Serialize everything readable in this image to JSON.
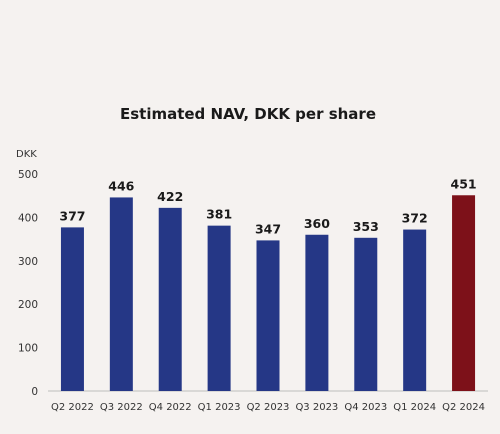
{
  "chart_data": {
    "type": "bar",
    "title": "Estimated NAV, DKK per share",
    "ylabel": "DKK",
    "xlabel": "",
    "ylim": [
      0,
      500
    ],
    "yticks": [
      0,
      100,
      200,
      300,
      400,
      500
    ],
    "categories": [
      "Q2 2022",
      "Q3 2022",
      "Q4 2022",
      "Q1 2023",
      "Q2 2023",
      "Q3 2023",
      "Q4 2023",
      "Q1 2024",
      "Q2 2024"
    ],
    "values": [
      377,
      446,
      422,
      381,
      347,
      360,
      353,
      372,
      451
    ],
    "grid": false,
    "legend": "none",
    "colors": {
      "default_bar": "#253786",
      "highlight_bar": "#7d1119",
      "axis": "#bdbdbd"
    },
    "highlight_index": 8
  }
}
